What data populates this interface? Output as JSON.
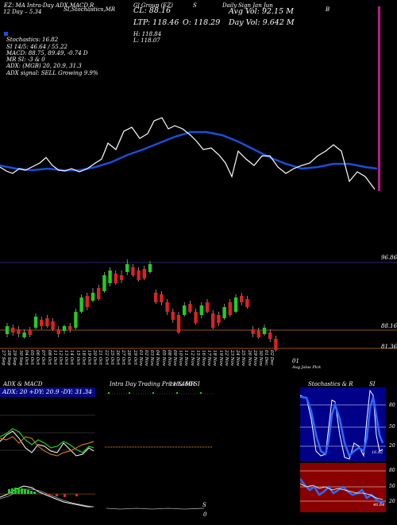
{
  "header": {
    "title_line": "EZ: MA Intra-Day ADX,MACD,R",
    "subtitle": "12  Day – 5.34",
    "col_stoch": "SI,Stochastics,MR",
    "col_other": "Gl Group (EZ)",
    "col_s": "S",
    "col_daily": "Daily",
    "col_r": "R",
    "series_note": "Sign Jan Jun",
    "col_b": "B"
  },
  "quote": {
    "close": "CL: 88.16",
    "ltp": "LTP: 118.46",
    "open": "O: 118.29",
    "high": "H: 118.84",
    "low": "L: 118.07",
    "avg_vol": "Avg Vol: 92.15  M",
    "day_vol": "Day Vol: 9.642  M"
  },
  "indicators": {
    "stochastics": "Stochastics: 16.82",
    "si": "SI 14/5: 46.64  / 55.22",
    "macd": "MACD: 88.75,  89.49, -0.74  D",
    "mr": "MR                SI: -3 & 0",
    "adx": "ADX:               (MGB) 20, 20.9, 31.3",
    "adx_signal": "ADX  signal: SELL Growing 9.9%"
  },
  "price_labels": {
    "right_top": "96.86",
    "right_mid": "88.16",
    "right_low": "81.36"
  },
  "dates": [
    "27 Sep",
    "28 Sep",
    "29 Sep",
    "30 Sep",
    "04 Oct",
    "05 Oct",
    "06 Oct",
    "07 Oct",
    "08 Oct",
    "11 Oct",
    "12 Oct",
    "13 Oct",
    "14 Oct",
    "15 Oct",
    "18 Oct",
    "19 Oct",
    "20 Oct",
    "21 Oct",
    "22 Oct",
    "25 Oct",
    "26 Oct",
    "27 Oct",
    "28 Oct",
    "29 Oct",
    "01 Nov",
    "02 Nov",
    "03 Nov",
    "04 Nov",
    "05 Nov",
    "08 Nov",
    "09 Nov",
    "10 Nov",
    "11 Nov",
    "12 Nov",
    "15 Nov",
    "16 Nov",
    "17 Nov",
    "18 Nov",
    "19 Nov",
    "22 Nov",
    "23 Nov",
    "24 Nov",
    "25 Nov",
    "26 Nov",
    "29 Nov",
    "30 Nov",
    "01 Dec",
    "02 Dec"
  ],
  "footer_note_1": "01",
  "footer_note_2": "Aug Jalas  Plck",
  "panels": {
    "adx_title": "ADX  & MACD",
    "adx_values": "ADX: 20  +DY: 20.9 -DY: 31.34",
    "intra_title": "Intra  Day Trading Price  & MR",
    "intra_value": "118.460 SI",
    "intra_label_s": "S",
    "intra_label_0": "0",
    "stoch_title": "Stochastics & R",
    "stoch_si": "SI",
    "stoch_levels": [
      "80",
      "50",
      "20"
    ],
    "stoch_low_label": "16.82",
    "r_levels": [
      "80",
      "50",
      "20"
    ],
    "r_low_label": "46.64"
  },
  "colors": {
    "background": "#000000",
    "ma_line": "#1a4fd8",
    "price_line": "#ffffff",
    "candle_up": "#22cc22",
    "candle_down": "#dd2222",
    "guide_orange": "#c87020",
    "stoch_bg": "#000088",
    "r_bg": "#8a0000",
    "edge_bar": "#c0188a"
  }
}
